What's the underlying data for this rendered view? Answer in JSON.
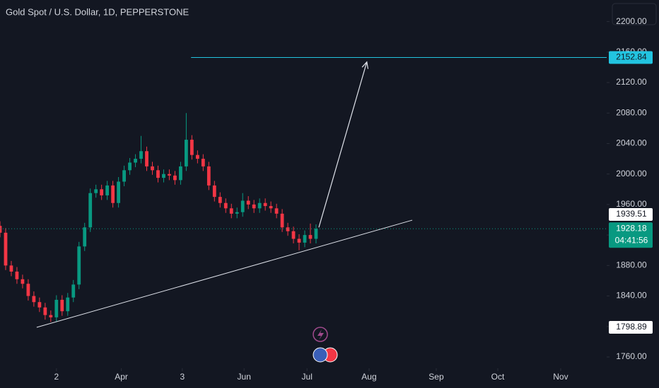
{
  "chart_data": {
    "type": "candlestick",
    "title": "Gold Spot / U.S. Dollar, 1D, PEPPERSTONE",
    "up_color": "#089981",
    "down_color": "#f23645",
    "x": [
      0,
      2,
      4,
      6,
      8,
      10,
      12,
      14,
      16,
      18,
      20,
      22,
      24,
      26,
      28,
      30,
      32,
      34,
      36,
      38,
      40,
      42,
      44,
      46,
      48,
      50,
      52,
      54,
      56,
      58,
      60,
      62,
      64,
      66,
      68,
      70,
      72,
      74,
      76,
      78,
      80,
      82,
      84,
      86,
      88,
      90,
      92,
      94,
      96,
      98,
      100,
      102,
      104,
      106,
      108,
      110,
      112
    ],
    "open": [
      1932,
      1923,
      1880,
      1872,
      1862,
      1856,
      1840,
      1832,
      1825,
      1815,
      1812,
      1835,
      1820,
      1838,
      1855,
      1905,
      1930,
      1975,
      1980,
      1972,
      1985,
      1962,
      1990,
      2005,
      2015,
      2020,
      2030,
      2010,
      2005,
      1995,
      2000,
      1998,
      1992,
      2010,
      2045,
      2025,
      2020,
      2010,
      1985,
      1970,
      1962,
      1955,
      1948,
      1950,
      1965,
      1960,
      1955,
      1962,
      1958,
      1955,
      1948,
      1930,
      1925,
      1915,
      1910,
      1920,
      1915
    ],
    "high": [
      1938,
      1929,
      1886,
      1878,
      1868,
      1862,
      1846,
      1838,
      1831,
      1821,
      1841,
      1841,
      1844,
      1861,
      1911,
      1936,
      1981,
      1986,
      1986,
      1991,
      1991,
      1996,
      2011,
      2021,
      2026,
      2050,
      2036,
      2016,
      2011,
      2006,
      2006,
      2004,
      2016,
      2080,
      2051,
      2031,
      2026,
      2016,
      1991,
      1976,
      1968,
      1961,
      1956,
      1975,
      1971,
      1966,
      1968,
      1968,
      1964,
      1961,
      1954,
      1936,
      1931,
      1921,
      1926,
      1935,
      1934
    ],
    "low": [
      1917,
      1874,
      1866,
      1856,
      1850,
      1834,
      1826,
      1819,
      1809,
      1806,
      1806,
      1814,
      1814,
      1832,
      1849,
      1899,
      1924,
      1969,
      1966,
      1966,
      1956,
      1956,
      1984,
      1999,
      2009,
      2014,
      2004,
      1999,
      1989,
      1989,
      1992,
      1986,
      1986,
      2004,
      2019,
      2014,
      2004,
      1979,
      1964,
      1956,
      1949,
      1942,
      1942,
      1944,
      1954,
      1949,
      1949,
      1952,
      1949,
      1942,
      1924,
      1919,
      1909,
      1900,
      1904,
      1909,
      1909
    ],
    "close": [
      1923,
      1880,
      1872,
      1862,
      1856,
      1840,
      1832,
      1825,
      1815,
      1812,
      1835,
      1820,
      1838,
      1855,
      1905,
      1930,
      1975,
      1980,
      1972,
      1985,
      1962,
      1990,
      2005,
      2015,
      2020,
      2030,
      2010,
      2005,
      1995,
      2000,
      1998,
      1992,
      2010,
      2045,
      2025,
      2020,
      2010,
      1985,
      1970,
      1962,
      1955,
      1948,
      1950,
      1965,
      1960,
      1955,
      1962,
      1958,
      1955,
      1948,
      1930,
      1925,
      1915,
      1910,
      1920,
      1915,
      1928.18
    ],
    "countdown": "04:41:56",
    "xlim": [
      0,
      215
    ],
    "ylim": [
      1719.3,
      2228.3
    ],
    "xticks": [
      {
        "value": 20,
        "label": "2"
      },
      {
        "value": 43,
        "label": "Apr"
      },
      {
        "value": 64.6,
        "label": "3"
      },
      {
        "value": 86.5,
        "label": "Jun"
      },
      {
        "value": 108.8,
        "label": "Jul"
      },
      {
        "value": 130.8,
        "label": "Aug"
      },
      {
        "value": 154.6,
        "label": "Sep"
      },
      {
        "value": 176.4,
        "label": "Oct"
      },
      {
        "value": 198.7,
        "label": "Nov"
      }
    ],
    "yticks": [
      {
        "value": 1760,
        "label": "1760.00"
      },
      {
        "value": 1800,
        "label": "1800.00"
      },
      {
        "value": 1840,
        "label": "1840.00"
      },
      {
        "value": 1880,
        "label": "1880.00"
      },
      {
        "value": 1920,
        "label": "1920.00"
      },
      {
        "value": 1960,
        "label": "1960.00"
      },
      {
        "value": 2000,
        "label": "2000.00"
      },
      {
        "value": 2040,
        "label": "2040.00"
      },
      {
        "value": 2080,
        "label": "2080.00"
      },
      {
        "value": 2120,
        "label": "2120.00"
      },
      {
        "value": 2160,
        "label": "2160.00"
      },
      {
        "value": 2200,
        "label": "2200.00"
      }
    ],
    "horizontal_line": {
      "value": 2152.84,
      "x_start": 67.7,
      "color": "#22c4e0"
    },
    "trendline": {
      "x": [
        13,
        146.1
      ],
      "y": [
        1798.89,
        1939.51
      ],
      "color": "#e0e3eb"
    },
    "arrow": {
      "x": [
        113,
        130
      ],
      "y": [
        1930,
        2147
      ],
      "color": "#e0e3eb"
    }
  }
}
